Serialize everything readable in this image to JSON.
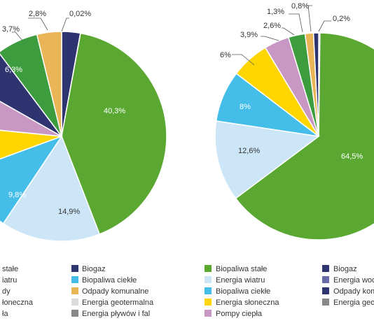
{
  "chart_data": [
    {
      "type": "pie",
      "slices": [
        {
          "label": "Biogaz",
          "value": 2.8,
          "color": "#2e3470",
          "text": "2,8%"
        },
        {
          "label": "Energia wodna",
          "value": 0.02,
          "color": "#6a6aa8",
          "text": "0,02%"
        },
        {
          "label": "Biopaliwa stałe",
          "value": 40.3,
          "color": "#5aa832",
          "text": "40,3%"
        },
        {
          "label": "Energia wiatru",
          "value": 14.9,
          "color": "#cde6f7",
          "text": "14,9%"
        },
        {
          "label": "Biopaliwa ciekłe",
          "value": 9.8,
          "color": "#45bde9",
          "text": "9,8%"
        },
        {
          "label": "Energia słoneczna",
          "value": 7.0,
          "color": "#ffd500",
          "text": ""
        },
        {
          "label": "Pompy ciepła",
          "value": 6.5,
          "color": "#c997c4",
          "text": ""
        },
        {
          "label": "Odpady komunalne",
          "value": 6.4,
          "color": "#2e3470",
          "text": ""
        },
        {
          "label": "Energia geotermalna",
          "value": 6.3,
          "color": "#3d9c3d",
          "text": "6,3%"
        },
        {
          "label": "Energia pływów i fal",
          "value": 3.7,
          "color": "#e9b556",
          "text": "3,7%"
        }
      ],
      "legend": [
        {
          "label": "stałe",
          "color": "#5aa832"
        },
        {
          "label": "Biogaz",
          "color": "#2e3470"
        },
        {
          "label": "iatru",
          "color": "#cde6f7"
        },
        {
          "label": "Biopaliwa ciekłe",
          "color": "#45bde9"
        },
        {
          "label": "dy",
          "color": "#2e3470"
        },
        {
          "label": "Odpady komunalne",
          "color": "#e9b556"
        },
        {
          "label": "łoneczna",
          "color": "#ffd500"
        },
        {
          "label": "Energia geotermalna",
          "color": "#dcdcdc"
        },
        {
          "label": "ła",
          "color": "#c997c4"
        },
        {
          "label": "Energia pływów i fal",
          "color": "#888888"
        }
      ]
    },
    {
      "type": "pie",
      "slices": [
        {
          "label": "Energia wodna",
          "value": 0.2,
          "color": "#2e3470",
          "text": "0,2%"
        },
        {
          "label": "Biopaliwa stałe",
          "value": 64.5,
          "color": "#5aa832",
          "text": "64,5%"
        },
        {
          "label": "Energia wiatru",
          "value": 12.6,
          "color": "#cde6f7",
          "text": "12,6%"
        },
        {
          "label": "Biopaliwa ciekłe",
          "value": 8,
          "color": "#45bde9",
          "text": "8%"
        },
        {
          "label": "Energia słoneczna",
          "value": 6,
          "color": "#ffd500",
          "text": "6%"
        },
        {
          "label": "Pompy ciepła",
          "value": 3.9,
          "color": "#c997c4",
          "text": "3,9%"
        },
        {
          "label": "Energia geotermalna",
          "value": 2.6,
          "color": "#3d9c3d",
          "text": "2,6%"
        },
        {
          "label": "Odpady komunalne",
          "value": 1.3,
          "color": "#e9b556",
          "text": "1,3%"
        },
        {
          "label": "Biogaz",
          "value": 0.8,
          "color": "#2e3470",
          "text": "0,8%"
        }
      ],
      "legend": [
        {
          "label": "Biopaliwa stałe",
          "color": "#5aa832"
        },
        {
          "label": "Biogaz",
          "color": "#2e3470"
        },
        {
          "label": "Energia wiatru",
          "color": "#cde6f7"
        },
        {
          "label": "Energia wod",
          "color": "#6a6aa8"
        },
        {
          "label": "Biopaliwa ciekłe",
          "color": "#45bde9"
        },
        {
          "label": "Odpady kom",
          "color": "#2e3470"
        },
        {
          "label": "Energia słoneczna",
          "color": "#ffd500"
        },
        {
          "label": "Energia geot",
          "color": "#888888"
        },
        {
          "label": "Pompy ciepła",
          "color": "#c997c4"
        }
      ]
    }
  ]
}
